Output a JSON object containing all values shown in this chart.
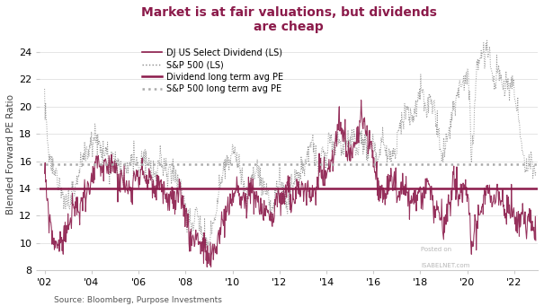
{
  "title": "Market is at fair valuations, but dividends\nare cheap",
  "title_color": "#8B1A4A",
  "ylabel": "Blended Forward PE Ratio",
  "source": "Source: Bloomberg, Purpose Investments",
  "watermark_line1": "Posted on",
  "watermark_line2": "ISABELNET.com",
  "ylim": [
    8,
    25
  ],
  "yticks": [
    8,
    10,
    12,
    14,
    16,
    18,
    20,
    22,
    24
  ],
  "xtick_positions": [
    2002,
    2004,
    2006,
    2008,
    2010,
    2012,
    2014,
    2016,
    2018,
    2020,
    2022
  ],
  "xtick_labels": [
    "'02",
    "'04",
    "'06",
    "'08",
    "'10",
    "'12",
    "'14",
    "'16",
    "'18",
    "'20",
    "'22"
  ],
  "xlim": [
    2001.8,
    2023.0
  ],
  "dividend_avg_pe": 14.0,
  "sp500_avg_pe": 15.75,
  "dj_color": "#8B1A4A",
  "sp500_color": "#888888",
  "sp500_avg_color": "#aaaaaa",
  "bg_color": "#ffffff",
  "grid_color": "#e0e0e0",
  "legend_fontsize": 7.0,
  "title_fontsize": 10,
  "label_fontsize": 7.5,
  "tick_fontsize": 8
}
